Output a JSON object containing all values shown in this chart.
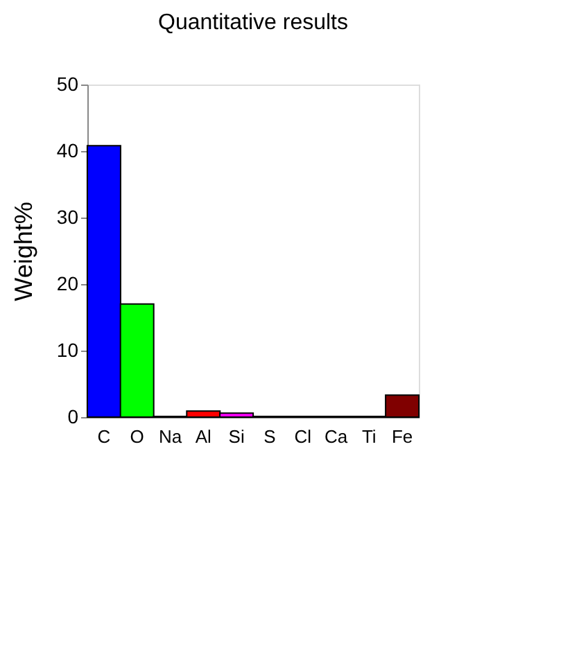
{
  "chart_data": {
    "type": "bar",
    "title": "Quantitative results",
    "ylabel": "Weight%",
    "categories": [
      "C",
      "O",
      "Na",
      "Al",
      "Si",
      "S",
      "Cl",
      "Ca",
      "Ti",
      "Fe"
    ],
    "values": [
      40.8,
      17.0,
      0.1,
      0.9,
      0.6,
      0.1,
      0.1,
      0.1,
      0.1,
      3.3
    ],
    "colors": [
      "#0000ff",
      "#00ff00",
      "#008080",
      "#ff0000",
      "#ff00ff",
      "#808000",
      "#000060",
      "#004000",
      "#004040",
      "#800000"
    ],
    "ylim": [
      0,
      50
    ],
    "yticks": [
      0,
      10,
      20,
      30,
      40,
      50
    ],
    "grid": false
  }
}
